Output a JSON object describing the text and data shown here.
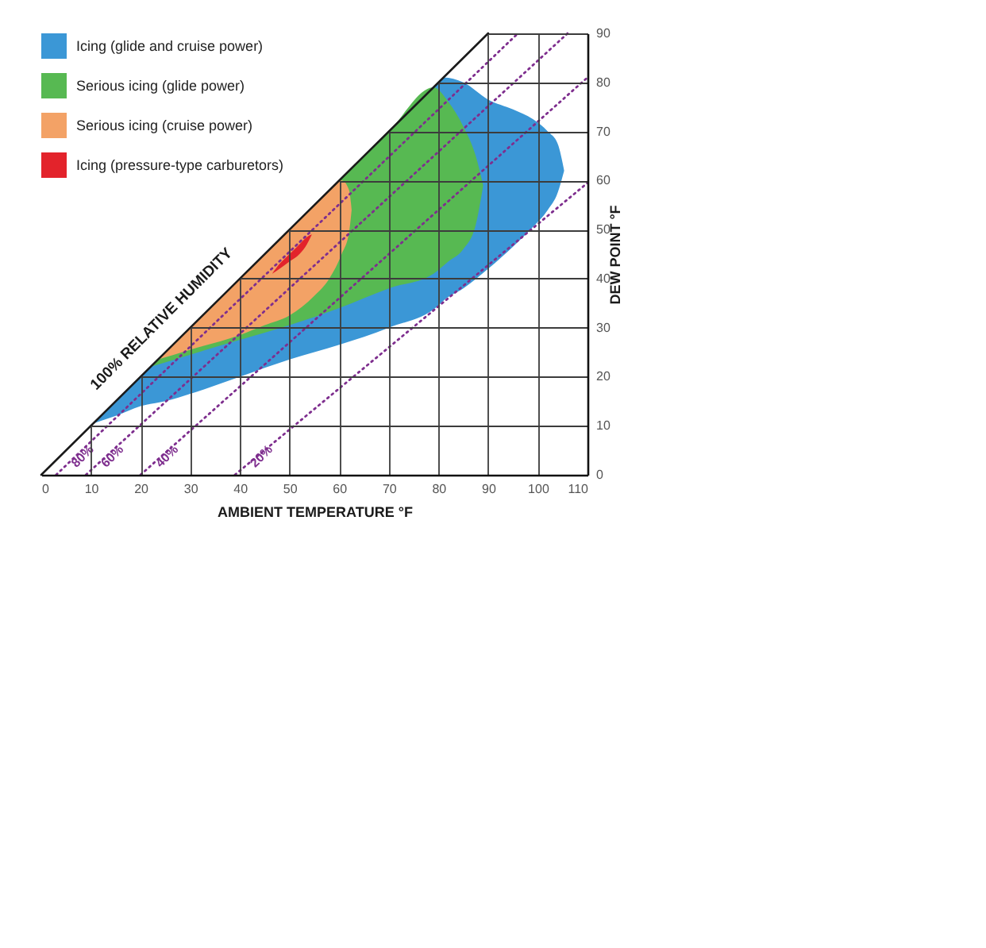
{
  "chart_data": {
    "type": "area",
    "xlabel": "AMBIENT TEMPERATURE °F",
    "ylabel": "DEW POINT °F",
    "xlim": [
      0,
      110
    ],
    "ylim": [
      0,
      90
    ],
    "xticks": [
      0,
      10,
      20,
      30,
      40,
      50,
      60,
      70,
      80,
      90,
      100,
      110
    ],
    "yticks": [
      0,
      10,
      20,
      30,
      40,
      50,
      60,
      70,
      80,
      90
    ],
    "grid": true,
    "legend": "top left",
    "series": [
      {
        "name": "Icing (glide and cruise power)",
        "color": "#3b97d6",
        "x": [
          10.5,
          15,
          20,
          25,
          30,
          40,
          50,
          60,
          70,
          80,
          81,
          85,
          90,
          95,
          99,
          102,
          104,
          105.3
        ],
        "values": [
          null,
          null,
          null,
          null,
          null,
          null,
          null,
          null,
          null,
          null,
          null,
          null,
          null,
          null,
          null,
          null,
          null,
          null
        ],
        "upper": [
          10.5,
          15,
          20,
          25,
          30,
          40,
          50,
          60,
          70,
          80,
          81,
          80,
          76.5,
          74.5,
          72.5,
          70,
          67.5,
          62
        ],
        "lower": [
          10.5,
          12,
          14,
          15,
          16.5,
          20,
          23.5,
          26.5,
          30,
          34.5,
          35.5,
          38,
          42,
          46.5,
          50.5,
          54,
          57.5,
          62
        ]
      },
      {
        "name": "Serious icing (glide power)",
        "color": "#57b952",
        "x": [
          22,
          30,
          40,
          50,
          60,
          70,
          79,
          82,
          85,
          87.5,
          89
        ],
        "values": [
          null,
          null,
          null,
          null,
          null,
          null,
          null,
          null,
          null,
          null,
          null
        ],
        "upper": [
          22,
          30,
          40,
          50,
          60,
          70,
          79,
          76,
          71,
          65,
          59
        ],
        "lower": [
          22,
          24.5,
          27.5,
          30.5,
          34,
          38,
          41,
          43.5,
          46,
          51,
          59
        ]
      },
      {
        "name": "Serious icing (cruise power)",
        "color": "#f3a266",
        "x": [
          23.5,
          30,
          40,
          45,
          50,
          55,
          58,
          60.5,
          62,
          62.5
        ],
        "values": [
          null,
          null,
          null,
          null,
          null,
          null,
          null,
          null,
          null,
          null
        ],
        "upper": [
          23.5,
          30,
          40,
          45,
          50,
          55,
          58,
          60,
          58,
          54
        ],
        "lower": [
          23.5,
          25.5,
          28.5,
          30.5,
          32.5,
          36.5,
          40,
          45,
          49.5,
          54
        ]
      },
      {
        "name": "Icing (pressure-type carburetors)",
        "color": "#e3232b",
        "x": [
          46.5,
          48,
          50,
          52,
          53.5,
          54.5
        ],
        "values": [
          null,
          null,
          null,
          null,
          null,
          null
        ],
        "upper": [
          41,
          43,
          45,
          47,
          48.5,
          49
        ],
        "lower": [
          41,
          42,
          43.5,
          45,
          47,
          49
        ]
      },
      {
        "name": "80%",
        "type": "line",
        "color": "#7e2e8e",
        "line_style": "dotted",
        "x": [
          3,
          96
        ],
        "values": [
          0,
          90
        ]
      },
      {
        "name": "60%",
        "type": "line",
        "color": "#7e2e8e",
        "line_style": "dotted",
        "x": [
          9,
          106
        ],
        "values": [
          0,
          90
        ]
      },
      {
        "name": "40%",
        "type": "line",
        "color": "#7e2e8e",
        "line_style": "dotted",
        "x": [
          20,
          110
        ],
        "values": [
          0,
          81
        ]
      },
      {
        "name": "20%",
        "type": "line",
        "color": "#7e2e8e",
        "line_style": "dotted",
        "x": [
          39,
          110
        ],
        "values": [
          0,
          59.5
        ]
      },
      {
        "name": "100% RELATIVE HUMIDITY",
        "type": "line",
        "color": "#1a1a1a",
        "line_style": "solid",
        "x": [
          0,
          90
        ],
        "values": [
          0,
          90
        ]
      }
    ]
  }
}
